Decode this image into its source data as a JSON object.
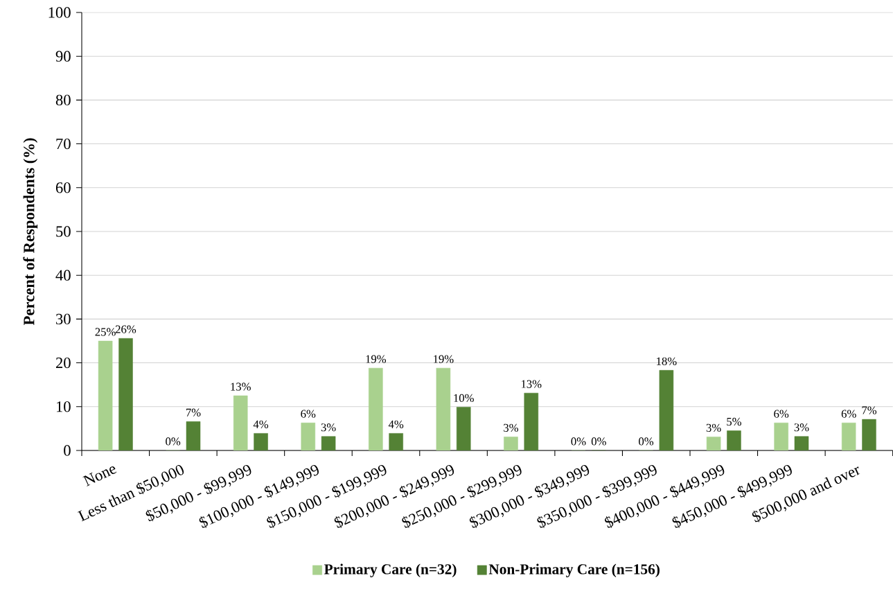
{
  "chart_data": {
    "type": "bar",
    "ylabel": "Percent of Respondents (%)",
    "categories": [
      "None",
      "Less than $50,000",
      "$50,000 - $99,999",
      "$100,000 - $149,999",
      "$150,000 - $199,999",
      "$200,000 - $249,999",
      "$250,000 - $299,999",
      "$300,000 - $349,999",
      "$350,000 - $399,999",
      "$400,000 - $449,999",
      "$450,000 - $499,999",
      "$500,000 and over"
    ],
    "series": [
      {
        "name": "Primary Care (n=32)",
        "color": "#a9d18e",
        "values": [
          25,
          0,
          12.5,
          6.3,
          18.8,
          18.8,
          3.1,
          0,
          0,
          3.1,
          6.3,
          6.3
        ],
        "value_labels": [
          "25%",
          "0%",
          "13%",
          "6%",
          "19%",
          "19%",
          "3%",
          "0%",
          "0%",
          "3%",
          "6%",
          "6%"
        ]
      },
      {
        "name": "Non-Primary Care (n=156)",
        "color": "#548235",
        "values": [
          25.6,
          6.6,
          3.9,
          3.2,
          3.9,
          9.9,
          13.1,
          0,
          18.3,
          4.5,
          3.2,
          7.1
        ],
        "value_labels": [
          "26%",
          "7%",
          "4%",
          "3%",
          "4%",
          "10%",
          "13%",
          "0%",
          "18%",
          "5%",
          "3%",
          "7%"
        ]
      }
    ],
    "ylim": [
      0,
      100
    ],
    "yticks": [
      0,
      10,
      20,
      30,
      40,
      50,
      60,
      70,
      80,
      90,
      100
    ],
    "grid": "y",
    "legend": "bottom"
  }
}
